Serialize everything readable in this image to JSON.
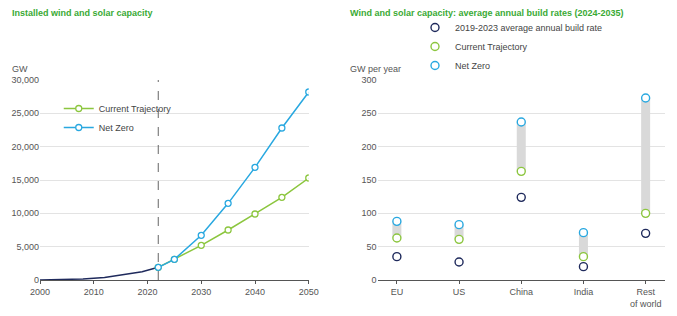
{
  "chart_data": [
    {
      "type": "line",
      "title": "Installed wind and solar capacity",
      "y_label": "GW",
      "xlim": [
        2000,
        2050
      ],
      "xticks": [
        2000,
        2010,
        2020,
        2030,
        2040,
        2050
      ],
      "ylim": [
        0,
        30000
      ],
      "yticks": [
        0,
        {
          "value": 5000,
          "label": "5,000"
        },
        {
          "value": 10000,
          "label": "10,000"
        },
        {
          "value": 15000,
          "label": "15,000"
        },
        {
          "value": 20000,
          "label": "20,000"
        },
        {
          "value": 25000,
          "label": "25,000"
        },
        {
          "value": 30000,
          "label": "30,000"
        }
      ],
      "grid": true,
      "legend": "top left",
      "reference_line_x": 2022,
      "series": [
        {
          "color": "#1f2a5c",
          "x": [
            2000,
            2004,
            2008,
            2012,
            2016,
            2019,
            2022
          ],
          "values": [
            10,
            50,
            150,
            380,
            820,
            1250,
            1900
          ]
        },
        {
          "name": "Current Trajectory",
          "color": "#8cc63f",
          "marker": "circle",
          "x": [
            2022,
            2025,
            2030,
            2035,
            2040,
            2045,
            2050
          ],
          "values": [
            1900,
            3100,
            5200,
            7500,
            9900,
            12400,
            15300
          ]
        },
        {
          "name": "Net Zero",
          "color": "#29a8e0",
          "marker": "circle",
          "x": [
            2022,
            2025,
            2030,
            2035,
            2040,
            2045,
            2050
          ],
          "values": [
            1900,
            3100,
            6700,
            11500,
            16900,
            22800,
            28200
          ]
        }
      ]
    },
    {
      "type": "dot",
      "title": "Wind and solar capacity: average annual build rates (2024-2035)",
      "y_label": "GW per year",
      "categories": [
        "EU",
        "US",
        "China",
        "India",
        "Rest\nof world"
      ],
      "ylim": [
        0,
        300
      ],
      "yticks": [
        0,
        50,
        100,
        150,
        200,
        250,
        300
      ],
      "grid": true,
      "legend": "top left",
      "series": [
        {
          "name": "2019-2023 average annual build rate",
          "color": "#1f2a5c",
          "marker": "circle",
          "values": [
            35,
            27,
            124,
            20,
            70
          ]
        },
        {
          "name": "Current Trajectory",
          "color": "#8cc63f",
          "marker": "circle",
          "values": [
            63,
            61,
            163,
            35,
            100
          ]
        },
        {
          "name": "Net Zero",
          "color": "#29a8e0",
          "marker": "circle",
          "values": [
            88,
            83,
            237,
            71,
            273
          ]
        }
      ]
    }
  ]
}
